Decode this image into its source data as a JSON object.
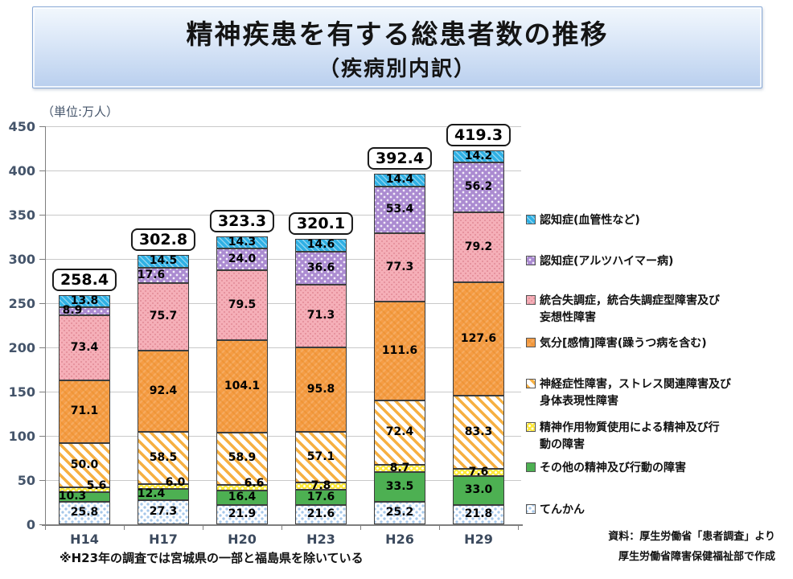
{
  "title": {
    "main": "精神疾患を有する総患者数の推移",
    "sub": "（疾病別内訳）"
  },
  "chart_data": {
    "type": "bar",
    "stacked": true,
    "unit_label": "（単位:万人）",
    "categories": [
      "H14",
      "H17",
      "H20",
      "H23",
      "H26",
      "H29"
    ],
    "totals": [
      "258.4",
      "302.8",
      "323.3",
      "320.1",
      "392.4",
      "419.3"
    ],
    "y_axis": {
      "min": 0,
      "max": 450,
      "step": 50,
      "ticks": [
        "0",
        "50",
        "100",
        "150",
        "200",
        "250",
        "300",
        "350",
        "400",
        "450"
      ]
    },
    "legend_position": "right",
    "grid": true,
    "series_bottom_to_top": [
      {
        "key": "epilepsy",
        "label": "てんかん",
        "color": "#ffffff",
        "pattern": "blue-dots",
        "pattern_color": "#a6c8ea",
        "values": [
          "25.8",
          "27.3",
          "21.9",
          "21.6",
          "25.2",
          "21.8"
        ]
      },
      {
        "key": "other",
        "label": "その他の精神及び行動の障害",
        "color": "#4db052",
        "pattern": "solid",
        "pattern_color": "",
        "values": [
          "10.3",
          "12.4",
          "16.4",
          "17.6",
          "33.5",
          "33.0"
        ]
      },
      {
        "key": "substance",
        "label": "精神作用物質使用による精神及び行\n動の障害",
        "color": "#ffe93b",
        "pattern": "white-dots",
        "pattern_color": "#ffffff",
        "values": [
          "5.6",
          "6.0",
          "6.6",
          "7.8",
          "8.7",
          "7.6"
        ]
      },
      {
        "key": "neurotic",
        "label": "神経症性障害，ストレス関連障害及び\n身体表現性障害",
        "color": "#ffffff",
        "pattern": "diagonal-stripes",
        "pattern_color": "#f6b042",
        "values": [
          "50.0",
          "58.5",
          "58.9",
          "57.1",
          "72.4",
          "83.3"
        ]
      },
      {
        "key": "mood",
        "label": "気分[感情]障害(躁うつ病を含む)",
        "color": "#f59c44",
        "pattern": "subtle-crosshatch",
        "pattern_color": "#e68c28",
        "values": [
          "71.1",
          "92.4",
          "104.1",
          "95.8",
          "111.6",
          "127.6"
        ]
      },
      {
        "key": "schizophrenia",
        "label": "統合失調症，統合失調症型障害及び\n妄想性障害",
        "color": "#f5afb8",
        "pattern": "subtle-dots",
        "pattern_color": "#e08692",
        "values": [
          "73.4",
          "75.7",
          "79.5",
          "71.3",
          "77.3",
          "79.2"
        ]
      },
      {
        "key": "alzheimer",
        "label": "認知症(アルツハイマー病)",
        "color": "#ab8bd1",
        "pattern": "white-dots",
        "pattern_color": "#ffffff",
        "values": [
          "8.9",
          "17.6",
          "24.0",
          "36.6",
          "53.4",
          "56.2"
        ]
      },
      {
        "key": "vascular",
        "label": "認知症(血管性など)",
        "color": "#2fb0e4",
        "pattern": "subtle-diagonal",
        "pattern_color": "#ffffff",
        "values": [
          "13.8",
          "14.5",
          "14.3",
          "14.6",
          "14.4",
          "14.2"
        ]
      }
    ]
  },
  "footnote": "※H23年の調査では宮城県の一部と福島県を除いている",
  "source": {
    "line1": "資料：厚生労働省「患者調査」より",
    "line2": "厚生労働省障害保健福祉部で作成"
  }
}
